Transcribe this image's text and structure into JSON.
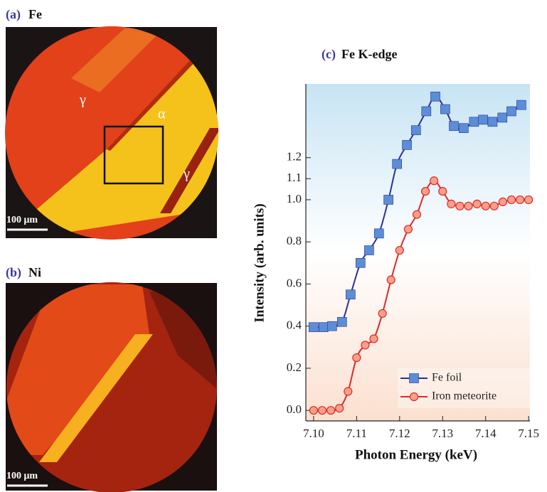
{
  "panels": [
    {
      "label": "(a)",
      "element": "Fe",
      "annotations": [
        "γ",
        "α",
        "γ"
      ],
      "scale_bar": "100 μm"
    },
    {
      "label": "(b)",
      "element": "Ni",
      "scale_bar": "100 μm"
    }
  ],
  "chart_data": {
    "type": "line",
    "panel_label": "(c)",
    "title": "Fe K-edge",
    "x_label": "Photon Energy (keV)",
    "y_label": "Intensity (arb. units)",
    "xlim": [
      7.0982,
      7.1503
    ],
    "ylim": [
      -0.05,
      1.55
    ],
    "xticks": [
      {
        "value": 7.1,
        "label": "7.10"
      },
      7.11,
      7.12,
      7.13,
      7.14,
      7.15
    ],
    "yticks": [
      {
        "value": 0,
        "label": "0.0"
      },
      0.2,
      0.4,
      0.6,
      0.8,
      {
        "value": 1,
        "label": "1.0"
      },
      1.1,
      1.2
    ],
    "legend": "lower right",
    "series": [
      {
        "name": "Fe foil",
        "color": "#2e3192",
        "marker": "square",
        "marker_color": "#5b8ed6",
        "x": [
          7.1,
          7.1023,
          7.1043,
          7.1066,
          7.1086,
          7.1109,
          7.1129,
          7.1152,
          7.1174,
          7.1194,
          7.1217,
          7.1238,
          7.1262,
          7.1283,
          7.1306,
          7.1326,
          7.1349,
          7.1373,
          7.1394,
          7.1416,
          7.1439,
          7.146,
          7.1483
        ],
        "values": [
          0.395,
          0.395,
          0.4,
          0.42,
          0.55,
          0.7,
          0.76,
          0.84,
          1.0,
          1.17,
          1.26,
          1.33,
          1.42,
          1.49,
          1.43,
          1.35,
          1.34,
          1.37,
          1.38,
          1.37,
          1.39,
          1.42,
          1.45
        ]
      },
      {
        "name": "Iron meteorite",
        "color": "#e02828",
        "marker": "circle",
        "marker_color": "#f6a08a",
        "x": [
          7.1,
          7.102,
          7.104,
          7.106,
          7.108,
          7.11,
          7.112,
          7.114,
          7.116,
          7.118,
          7.12,
          7.122,
          7.124,
          7.126,
          7.128,
          7.13,
          7.132,
          7.134,
          7.136,
          7.138,
          7.14,
          7.142,
          7.144,
          7.146,
          7.148,
          7.15
        ],
        "values": [
          0.0,
          0.0,
          0.0,
          0.01,
          0.09,
          0.25,
          0.31,
          0.34,
          0.46,
          0.62,
          0.76,
          0.86,
          0.93,
          1.04,
          1.09,
          1.04,
          0.98,
          0.97,
          0.97,
          0.98,
          0.97,
          0.97,
          0.99,
          1.0,
          1.0,
          1.0
        ]
      }
    ]
  }
}
